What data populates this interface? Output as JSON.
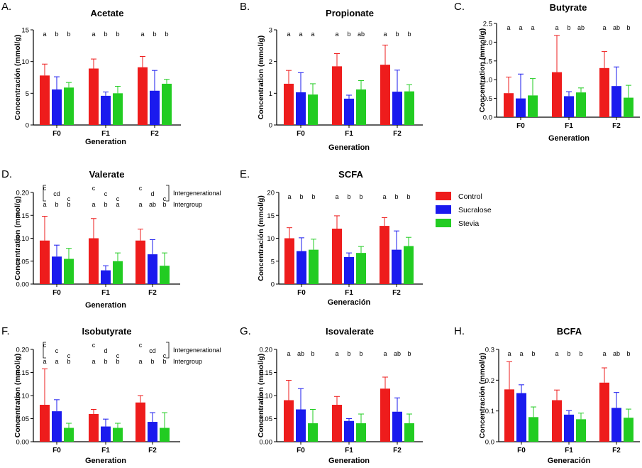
{
  "legend": [
    {
      "name": "Control",
      "color": "#ee1c1c"
    },
    {
      "name": "Sucralose",
      "color": "#1a1aee"
    },
    {
      "name": "Stevia",
      "color": "#22cc22"
    }
  ],
  "chart_data": [
    {
      "panel": "A.",
      "type": "bar",
      "title": "Acetate",
      "xlabel": "Generation",
      "ylabel": "Concentración (mmol/g)",
      "categories": [
        "F0",
        "F1",
        "F2"
      ],
      "ylim": [
        0,
        15
      ],
      "yticks": [
        "0",
        "5",
        "10",
        "15"
      ],
      "series": [
        {
          "name": "Control",
          "values": [
            7.8,
            8.9,
            9.1
          ],
          "errors": [
            1.8,
            1.5,
            1.7
          ]
        },
        {
          "name": "Sucralose",
          "values": [
            5.6,
            4.6,
            5.4
          ],
          "errors": [
            2.0,
            0.6,
            3.2
          ]
        },
        {
          "name": "Stevia",
          "values": [
            5.9,
            5.0,
            6.5
          ],
          "errors": [
            0.8,
            1.1,
            0.7
          ]
        }
      ],
      "letters": [
        [
          "a",
          "b",
          "b"
        ],
        [
          "a",
          "b",
          "b"
        ],
        [
          "a",
          "b",
          "b"
        ]
      ]
    },
    {
      "panel": "B.",
      "type": "bar",
      "title": "Propionate",
      "xlabel": "Generation",
      "ylabel": "Concentration (mmol/g)",
      "categories": [
        "F0",
        "F1",
        "F2"
      ],
      "ylim": [
        0,
        3
      ],
      "yticks": [
        "0",
        "1",
        "2",
        "3"
      ],
      "series": [
        {
          "name": "Control",
          "values": [
            1.3,
            1.85,
            1.9
          ],
          "errors": [
            0.42,
            0.4,
            0.62
          ]
        },
        {
          "name": "Sucralose",
          "values": [
            1.03,
            0.83,
            1.05
          ],
          "errors": [
            0.62,
            0.11,
            0.68
          ]
        },
        {
          "name": "Stevia",
          "values": [
            0.96,
            1.12,
            1.06
          ],
          "errors": [
            0.34,
            0.28,
            0.21
          ]
        }
      ],
      "letters": [
        [
          "a",
          "a",
          "a"
        ],
        [
          "a",
          "b",
          "ab"
        ],
        [
          "a",
          "b",
          "b"
        ]
      ]
    },
    {
      "panel": "C.",
      "type": "bar",
      "title": "Butyrate",
      "xlabel": "Generation",
      "ylabel": "Concentration (mmol/g)",
      "categories": [
        "F0",
        "F1",
        "F2"
      ],
      "ylim": [
        0,
        2.5
      ],
      "yticks": [
        "0.0",
        "0.5",
        "1.0",
        "1.5",
        "2.0",
        "2.5"
      ],
      "series": [
        {
          "name": "Control",
          "values": [
            0.64,
            1.2,
            1.31
          ],
          "errors": [
            0.43,
            0.98,
            0.44
          ]
        },
        {
          "name": "Sucralose",
          "values": [
            0.5,
            0.56,
            0.83
          ],
          "errors": [
            0.65,
            0.12,
            0.51
          ]
        },
        {
          "name": "Stevia",
          "values": [
            0.58,
            0.66,
            0.52
          ],
          "errors": [
            0.45,
            0.12,
            0.33
          ]
        }
      ],
      "letters": [
        [
          "a",
          "a",
          "a"
        ],
        [
          "a",
          "b",
          "ab"
        ],
        [
          "a",
          "ab",
          "b"
        ]
      ]
    },
    {
      "panel": "D.",
      "type": "bar",
      "title": "Valerate",
      "xlabel": "Generation",
      "ylabel": "Concentration (mmol/g)",
      "categories": [
        "F0",
        "F1",
        "F2"
      ],
      "ylim": [
        0,
        0.2
      ],
      "yticks": [
        "0.00",
        "0.05",
        "0.10",
        "0.15",
        "0.20"
      ],
      "series": [
        {
          "name": "Control",
          "values": [
            0.095,
            0.1,
            0.095
          ],
          "errors": [
            0.053,
            0.043,
            0.025
          ]
        },
        {
          "name": "Sucralose",
          "values": [
            0.06,
            0.03,
            0.065
          ],
          "errors": [
            0.025,
            0.01,
            0.032
          ]
        },
        {
          "name": "Stevia",
          "values": [
            0.055,
            0.05,
            0.04
          ],
          "errors": [
            0.023,
            0.018,
            0.028
          ]
        }
      ],
      "letters_intergenerational": [
        [
          "c",
          "cd",
          "c"
        ],
        [
          "c",
          "c",
          "c"
        ],
        [
          "c",
          "d",
          "c"
        ]
      ],
      "letters": [
        [
          "a",
          "b",
          "b"
        ],
        [
          "a",
          "b",
          "a"
        ],
        [
          "a",
          "ab",
          "b"
        ]
      ],
      "note_top": "Intergenerational",
      "note_bottom": "Intergroup"
    },
    {
      "panel": "E.",
      "type": "bar",
      "title": "SCFA",
      "xlabel": "Generación",
      "ylabel": "Concentración (mmol/g)",
      "categories": [
        "F0",
        "F1",
        "F2"
      ],
      "ylim": [
        0,
        20
      ],
      "yticks": [
        "0",
        "5",
        "10",
        "15",
        "20"
      ],
      "series": [
        {
          "name": "Control",
          "values": [
            10.0,
            12.1,
            12.7
          ],
          "errors": [
            2.3,
            2.8,
            1.8
          ]
        },
        {
          "name": "Sucralose",
          "values": [
            7.2,
            5.9,
            7.5
          ],
          "errors": [
            2.9,
            0.9,
            4.1
          ]
        },
        {
          "name": "Stevia",
          "values": [
            7.5,
            6.8,
            8.3
          ],
          "errors": [
            2.3,
            1.4,
            1.9
          ]
        }
      ],
      "letters": [
        [
          "a",
          "b",
          "b"
        ],
        [
          "a",
          "b",
          "b"
        ],
        [
          "a",
          "b",
          "b"
        ]
      ]
    },
    {
      "panel": "F.",
      "type": "bar",
      "title": "Isobutyrate",
      "xlabel": "Generation",
      "ylabel": "Concentration (mmol/g)",
      "categories": [
        "F0",
        "F1",
        "F2"
      ],
      "ylim": [
        0,
        0.2
      ],
      "yticks": [
        "0.00",
        "0.05",
        "0.10",
        "0.15",
        "0.20"
      ],
      "series": [
        {
          "name": "Control",
          "values": [
            0.08,
            0.06,
            0.085
          ],
          "errors": [
            0.078,
            0.01,
            0.015
          ]
        },
        {
          "name": "Sucralose",
          "values": [
            0.066,
            0.033,
            0.043
          ],
          "errors": [
            0.025,
            0.016,
            0.02
          ]
        },
        {
          "name": "Stevia",
          "values": [
            0.03,
            0.03,
            0.03
          ],
          "errors": [
            0.01,
            0.01,
            0.033
          ]
        }
      ],
      "letters_intergenerational": [
        [
          "c",
          "c",
          "c"
        ],
        [
          "c",
          "d",
          "c"
        ],
        [
          "c",
          "cd",
          "c"
        ]
      ],
      "letters": [
        [
          "a",
          "a",
          "b"
        ],
        [
          "a",
          "b",
          "b"
        ],
        [
          "a",
          "b",
          "b"
        ]
      ],
      "note_top": "Intergenerational",
      "note_bottom": "Intergroup"
    },
    {
      "panel": "G.",
      "type": "bar",
      "title": "Isovalerate",
      "xlabel": "Generation",
      "ylabel": "Concentration (mmol/g)",
      "categories": [
        "F0",
        "F1",
        "F2"
      ],
      "ylim": [
        0,
        0.2
      ],
      "yticks": [
        "0.00",
        "0.05",
        "0.10",
        "0.15",
        "0.20"
      ],
      "series": [
        {
          "name": "Control",
          "values": [
            0.09,
            0.08,
            0.115
          ],
          "errors": [
            0.043,
            0.018,
            0.025
          ]
        },
        {
          "name": "Sucralose",
          "values": [
            0.07,
            0.045,
            0.065
          ],
          "errors": [
            0.045,
            0.005,
            0.03
          ]
        },
        {
          "name": "Stevia",
          "values": [
            0.04,
            0.04,
            0.04
          ],
          "errors": [
            0.03,
            0.02,
            0.02
          ]
        }
      ],
      "letters": [
        [
          "a",
          "ab",
          "b"
        ],
        [
          "a",
          "b",
          "b"
        ],
        [
          "a",
          "ab",
          "b"
        ]
      ]
    },
    {
      "panel": "H.",
      "type": "bar",
      "title": "BCFA",
      "xlabel": "Generación",
      "ylabel": "Concentración (mmol/g)",
      "categories": [
        "F0",
        "F1",
        "F2"
      ],
      "ylim": [
        0,
        0.3
      ],
      "yticks": [
        "0.0",
        "0.1",
        "0.2",
        "0.3"
      ],
      "series": [
        {
          "name": "Control",
          "values": [
            0.17,
            0.135,
            0.192
          ],
          "errors": [
            0.09,
            0.033,
            0.048
          ]
        },
        {
          "name": "Sucralose",
          "values": [
            0.158,
            0.088,
            0.11
          ],
          "errors": [
            0.027,
            0.013,
            0.05
          ]
        },
        {
          "name": "Stevia",
          "values": [
            0.08,
            0.073,
            0.078
          ],
          "errors": [
            0.033,
            0.02,
            0.028
          ]
        }
      ],
      "letters": [
        [
          "a",
          "a",
          "b"
        ],
        [
          "a",
          "b",
          "b"
        ],
        [
          "a",
          "ab",
          "b"
        ]
      ]
    }
  ]
}
